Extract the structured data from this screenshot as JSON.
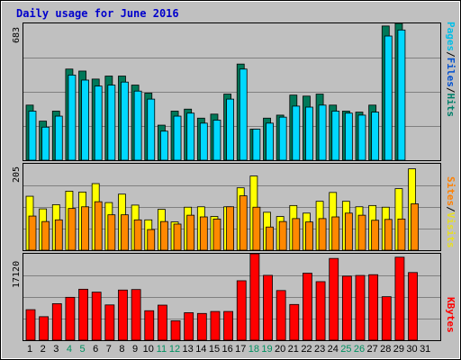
{
  "title": "Daily usage for June 2016",
  "legends": {
    "top": [
      {
        "text": "Pages",
        "color": "#00bfe8"
      },
      {
        "text": "/",
        "color": "#000000"
      },
      {
        "text": "Files",
        "color": "#0050d0"
      },
      {
        "text": "/",
        "color": "#000000"
      },
      {
        "text": "Hits",
        "color": "#00806a"
      }
    ],
    "middle": [
      {
        "text": "Sites",
        "color": "#ff8000"
      },
      {
        "text": "/",
        "color": "#000000"
      },
      {
        "text": "Visits",
        "color": "#e8e020"
      }
    ],
    "bottom": [
      {
        "text": "KBytes",
        "color": "#ff0000"
      }
    ]
  },
  "colors": {
    "hits": "#007858",
    "files": "#0000ff",
    "pages": "#00d8ff",
    "visits": "#ffff00",
    "sites": "#ff8800",
    "kbytes": "#ff0000",
    "weekend_label": "#009060",
    "background": "#c0c0c0"
  },
  "chart_data": [
    {
      "type": "bar",
      "title": "Daily usage for June 2016",
      "panel": "top",
      "ymax_label": "683",
      "ylim": [
        0,
        683
      ],
      "categories": [
        "1",
        "2",
        "3",
        "4",
        "5",
        "6",
        "7",
        "8",
        "9",
        "10",
        "11",
        "12",
        "13",
        "14",
        "15",
        "16",
        "17",
        "18",
        "19",
        "20",
        "21",
        "22",
        "23",
        "24",
        "25",
        "26",
        "27",
        "28",
        "29",
        "30",
        "31"
      ],
      "weekend_days": [
        "4",
        "5",
        "11",
        "12",
        "18",
        "19",
        "25",
        "26"
      ],
      "series": [
        {
          "name": "Hits",
          "values": [
            275,
            195,
            245,
            455,
            445,
            405,
            420,
            420,
            375,
            335,
            175,
            245,
            255,
            210,
            230,
            330,
            480,
            155,
            210,
            225,
            325,
            320,
            330,
            275,
            245,
            240,
            275,
            670,
            683,
            0,
            0
          ]
        },
        {
          "name": "Files",
          "values": [
            0,
            0,
            0,
            0,
            0,
            0,
            0,
            0,
            0,
            0,
            0,
            0,
            0,
            0,
            0,
            0,
            0,
            0,
            0,
            0,
            0,
            0,
            0,
            0,
            0,
            0,
            0,
            0,
            0,
            0,
            0
          ]
        },
        {
          "name": "Pages",
          "values": [
            245,
            165,
            220,
            425,
            400,
            370,
            375,
            390,
            345,
            305,
            145,
            220,
            235,
            185,
            200,
            305,
            455,
            155,
            185,
            215,
            270,
            265,
            275,
            245,
            235,
            225,
            240,
            620,
            650,
            0,
            0
          ]
        }
      ]
    },
    {
      "type": "bar",
      "panel": "middle",
      "ymax_label": "205",
      "ylim": [
        0,
        205
      ],
      "categories": [
        "1",
        "2",
        "3",
        "4",
        "5",
        "6",
        "7",
        "8",
        "9",
        "10",
        "11",
        "12",
        "13",
        "14",
        "15",
        "16",
        "17",
        "18",
        "19",
        "20",
        "21",
        "22",
        "23",
        "24",
        "25",
        "26",
        "27",
        "28",
        "29",
        "30",
        "31"
      ],
      "series": [
        {
          "name": "Visits",
          "values": [
            128,
            98,
            108,
            140,
            138,
            158,
            113,
            133,
            107,
            72,
            97,
            67,
            102,
            103,
            80,
            103,
            148,
            176,
            90,
            80,
            106,
            88,
            116,
            137,
            116,
            103,
            106,
            102,
            146,
            193,
            0
          ]
        },
        {
          "name": "Sites",
          "values": [
            81,
            68,
            72,
            99,
            103,
            115,
            84,
            84,
            72,
            49,
            68,
            62,
            83,
            79,
            74,
            103,
            129,
            102,
            55,
            68,
            75,
            67,
            75,
            79,
            88,
            83,
            71,
            73,
            74,
            110,
            0
          ]
        }
      ]
    },
    {
      "type": "bar",
      "panel": "bottom",
      "ymax_label": "17120",
      "ylim": [
        0,
        17120
      ],
      "categories": [
        "1",
        "2",
        "3",
        "4",
        "5",
        "6",
        "7",
        "8",
        "9",
        "10",
        "11",
        "12",
        "13",
        "14",
        "15",
        "16",
        "17",
        "18",
        "19",
        "20",
        "21",
        "22",
        "23",
        "24",
        "25",
        "26",
        "27",
        "28",
        "29",
        "30",
        "31"
      ],
      "series": [
        {
          "name": "KBytes",
          "values": [
            6050,
            4660,
            7240,
            8500,
            10100,
            9520,
            6990,
            9940,
            10040,
            5840,
            6950,
            3850,
            5450,
            5300,
            5690,
            5690,
            11780,
            17120,
            12850,
            9840,
            7080,
            13280,
            11600,
            16200,
            12690,
            12830,
            12980,
            8620,
            16450,
            13410,
            0
          ]
        }
      ]
    }
  ],
  "day_labels": [
    "1",
    "2",
    "3",
    "4",
    "5",
    "6",
    "7",
    "8",
    "9",
    "10",
    "11",
    "12",
    "13",
    "14",
    "15",
    "16",
    "17",
    "18",
    "19",
    "20",
    "21",
    "22",
    "23",
    "24",
    "25",
    "26",
    "27",
    "28",
    "29",
    "30",
    "31"
  ]
}
